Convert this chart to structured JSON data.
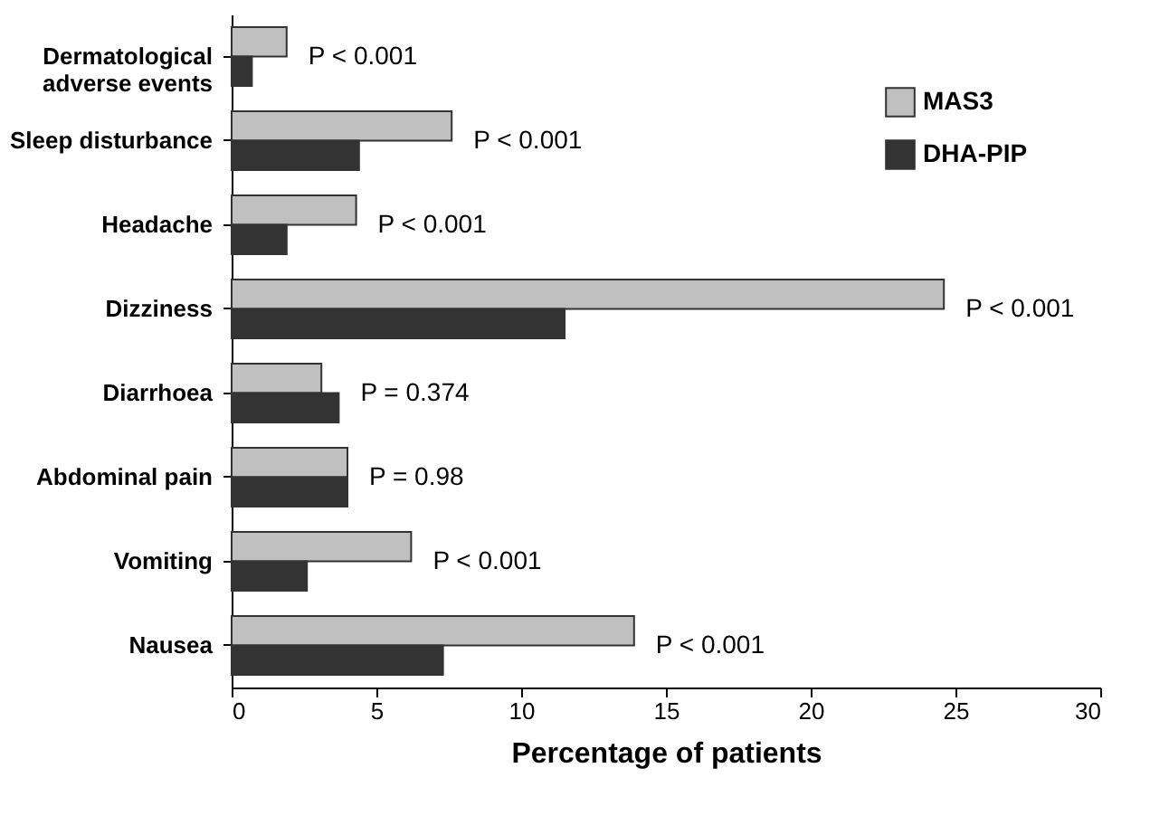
{
  "chart_data": {
    "type": "bar",
    "orientation": "horizontal",
    "xlabel": "Percentage of patients",
    "categories": [
      "Dermatological adverse events",
      "Sleep disturbance",
      "Headache",
      "Dizziness",
      "Diarrhoea",
      "Abdominal pain",
      "Vomiting",
      "Nausea"
    ],
    "series": [
      {
        "name": "MAS3",
        "color": "#c0c0c0",
        "values": [
          1.9,
          7.6,
          4.3,
          24.6,
          3.1,
          4.0,
          6.2,
          13.9
        ]
      },
      {
        "name": "DHA-PIP",
        "color": "#333333",
        "values": [
          0.7,
          4.4,
          1.9,
          11.5,
          3.7,
          4.0,
          2.6,
          7.3
        ]
      }
    ],
    "xlim": [
      0,
      30
    ],
    "xticks": [
      0,
      5,
      10,
      15,
      20,
      25,
      30
    ],
    "grid": false,
    "legend": "top right",
    "annotations": [
      "P < 0.001",
      "P < 0.001",
      "P < 0.001",
      "P < 0.001",
      "P = 0.374",
      "P = 0.98",
      "P < 0.001",
      "P < 0.001"
    ]
  }
}
